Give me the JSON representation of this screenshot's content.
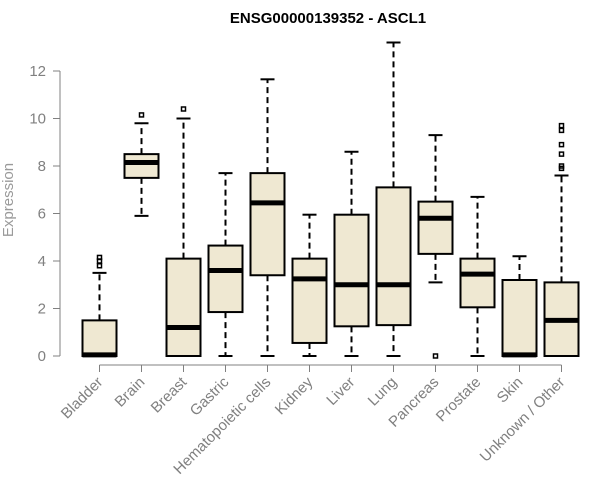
{
  "chart_data": {
    "type": "boxplot",
    "title": "ENSG00000139352 - ASCL1",
    "xlabel": "",
    "ylabel": "Expression",
    "ylim": [
      0,
      12.6
    ],
    "yticks": [
      0,
      2,
      4,
      6,
      8,
      10,
      12
    ],
    "categories": [
      "Bladder",
      "Brain",
      "Breast",
      "Gastric",
      "Hematopoietic cells",
      "Kidney",
      "Liver",
      "Lung",
      "Pancreas",
      "Prostate",
      "Skin",
      "Unknown / Other"
    ],
    "boxes": [
      {
        "category": "Bladder",
        "min": 0,
        "q1": 0,
        "median": 0.05,
        "q3": 1.5,
        "max": 3.5,
        "outliers": [
          3.8,
          4.0,
          4.15
        ]
      },
      {
        "category": "Brain",
        "min": 5.9,
        "q1": 7.5,
        "median": 8.15,
        "q3": 8.5,
        "max": 9.8,
        "outliers": [
          10.15
        ]
      },
      {
        "category": "Breast",
        "min": 0,
        "q1": 0,
        "median": 1.2,
        "q3": 4.1,
        "max": 10.0,
        "outliers": [
          10.4
        ]
      },
      {
        "category": "Gastric",
        "min": 0,
        "q1": 1.85,
        "median": 3.6,
        "q3": 4.65,
        "max": 7.7,
        "outliers": []
      },
      {
        "category": "Hematopoietic cells",
        "min": 0,
        "q1": 3.4,
        "median": 6.45,
        "q3": 7.7,
        "max": 11.65,
        "outliers": []
      },
      {
        "category": "Kidney",
        "min": 0,
        "q1": 0.55,
        "median": 3.25,
        "q3": 4.1,
        "max": 5.95,
        "outliers": []
      },
      {
        "category": "Liver",
        "min": 0,
        "q1": 1.25,
        "median": 3.0,
        "q3": 5.95,
        "max": 8.6,
        "outliers": []
      },
      {
        "category": "Lung",
        "min": 0,
        "q1": 1.3,
        "median": 3.0,
        "q3": 7.1,
        "max": 13.2,
        "outliers": []
      },
      {
        "category": "Pancreas",
        "min": 3.1,
        "q1": 4.3,
        "median": 5.8,
        "q3": 6.5,
        "max": 9.3,
        "outliers": [
          0.0
        ]
      },
      {
        "category": "Prostate",
        "min": 0,
        "q1": 2.05,
        "median": 3.45,
        "q3": 4.1,
        "max": 6.7,
        "outliers": []
      },
      {
        "category": "Skin",
        "min": 0,
        "q1": 0,
        "median": 0.05,
        "q3": 3.2,
        "max": 4.2,
        "outliers": []
      },
      {
        "category": "Unknown / Other",
        "min": 0,
        "q1": 0,
        "median": 1.5,
        "q3": 3.1,
        "max": 7.6,
        "outliers": [
          7.9,
          8.0,
          8.5,
          8.9,
          9.5,
          9.7
        ]
      }
    ],
    "grid": false,
    "box_fill": "#efe8d2",
    "stroke_color": "#000000",
    "axis_label_color": "#808080"
  }
}
